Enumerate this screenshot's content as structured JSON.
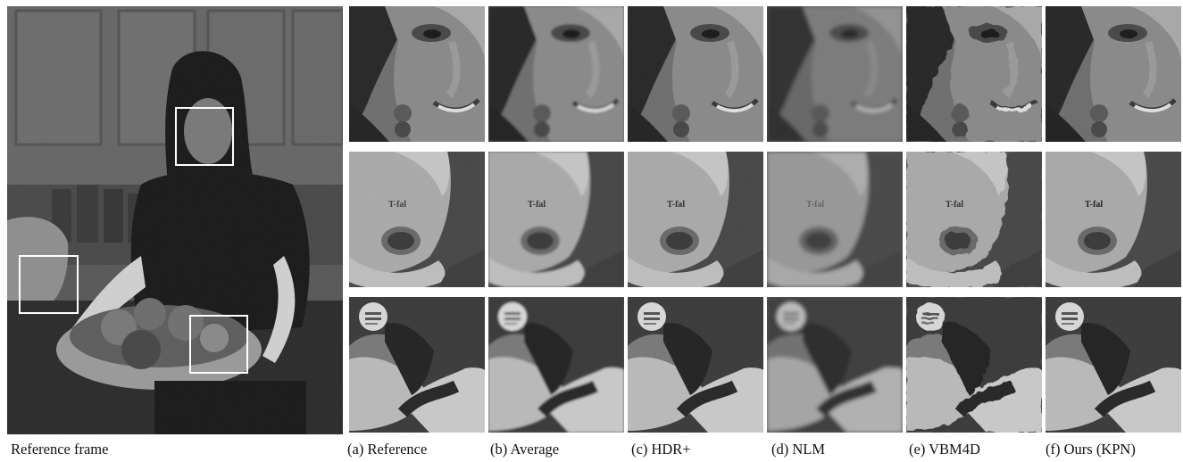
{
  "captions": {
    "reference_frame": "Reference frame",
    "columns": [
      "(a) Reference",
      "(b) Average",
      "(c) HDR+",
      "(d) NLM",
      "(e) VBM4D",
      "(f) Ours (KPN)"
    ]
  },
  "kettle_logo_text": "T-fal",
  "rows": [
    "face-crop",
    "kettle-crop",
    "apple-crop"
  ],
  "colors": {
    "background": "#ffffff",
    "roi_box": "#ffffff"
  }
}
